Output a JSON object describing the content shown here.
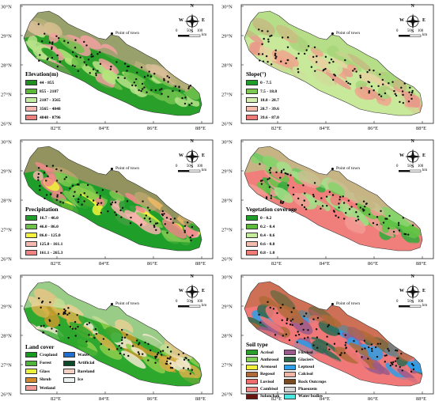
{
  "lat_labels": [
    "30°N",
    "29°N",
    "28°N",
    "27°N",
    "26°N"
  ],
  "lon_labels": [
    "82°E",
    "84°E",
    "86°E",
    "88°E"
  ],
  "compass": {
    "n": "N",
    "s": "S",
    "w": "W",
    "e": "E",
    "icon": "compass-rose-icon"
  },
  "town_label": "Point of town",
  "scale": {
    "ticks": [
      "0",
      "50",
      "100"
    ],
    "unit": "km"
  },
  "panels": [
    {
      "id": "elevation",
      "legend_title": "Elevation(m)",
      "map_colors": [
        "#2aa02a",
        "#71c24c",
        "#b9e28a",
        "#b6e47a",
        "#f2a0a0"
      ],
      "legend": [
        {
          "label": "44 - 855",
          "color": "#1f8f1f"
        },
        {
          "label": "855 - 2107",
          "color": "#5cb935"
        },
        {
          "label": "2107 - 3565",
          "color": "#c5eea2"
        },
        {
          "label": "3565 - 4848",
          "color": "#f6b8b0"
        },
        {
          "label": "4848 - 8796",
          "color": "#ee7f7f"
        }
      ]
    },
    {
      "id": "slope",
      "legend_title": "Slope(°)",
      "map_colors": [
        "#c8e89a",
        "#e6d2a0",
        "#f0a58c",
        "#e89a8a",
        "#a7d67a"
      ],
      "legend": [
        {
          "label": "0 - 7.5",
          "color": "#1f9e2a"
        },
        {
          "label": "7.5 - 18.8",
          "color": "#7cc850"
        },
        {
          "label": "18.8 - 28.7",
          "color": "#d8efb4"
        },
        {
          "label": "28.7 - 39.6",
          "color": "#f6bcae"
        },
        {
          "label": "39.6 - 87.0",
          "color": "#ee7a78"
        }
      ]
    },
    {
      "id": "precipitation",
      "legend_title": "Precipitation",
      "map_colors": [
        "#1f9e2a",
        "#7cc850",
        "#f2f23a",
        "#f6b3ad",
        "#f08a88"
      ],
      "legend": [
        {
          "label": "16.7 - 46.0",
          "color": "#1f9e2a"
        },
        {
          "label": "46.0 - 86.0",
          "color": "#6dc24a"
        },
        {
          "label": "86.0 - 125.0",
          "color": "#f5f23d"
        },
        {
          "label": "125.0 - 161.1",
          "color": "#f6b8b0"
        },
        {
          "label": "161.1 - 265.3",
          "color": "#f08282"
        }
      ]
    },
    {
      "id": "vegetation",
      "legend_title": "Vegetation coverage",
      "map_colors": [
        "#f07f7c",
        "#f39a94",
        "#63c447",
        "#2eae3a",
        "#a4e08a"
      ],
      "legend": [
        {
          "label": "0 - 0.2",
          "color": "#1f9e2a"
        },
        {
          "label": "0.2 - 0.4",
          "color": "#5cbc3a"
        },
        {
          "label": "0.4 - 0.6",
          "color": "#c6ed9f"
        },
        {
          "label": "0.6 - 0.8",
          "color": "#f6bcae"
        },
        {
          "label": "0.8 - 1.0",
          "color": "#f07c78"
        }
      ]
    },
    {
      "id": "landcover",
      "legend_title": "Land cover",
      "map_colors": [
        "#2ea82e",
        "#8ecf4c",
        "#d8b24a",
        "#c79a2c",
        "#f2ead0"
      ],
      "legend": [
        {
          "label": "Cropland",
          "color": "#149c1c"
        },
        {
          "label": "Water",
          "color": "#1f6fd0"
        },
        {
          "label": "Forest",
          "color": "#4fb53a"
        },
        {
          "label": "Artificial",
          "color": "#0d4a2a"
        },
        {
          "label": "Glass",
          "color": "#ecf23a"
        },
        {
          "label": "Bareland",
          "color": "#f4d0c2"
        },
        {
          "label": "Shrub",
          "color": "#d48a2a"
        },
        {
          "label": "Ice",
          "color": "#eef2f2"
        },
        {
          "label": "Wetland",
          "color": "#f39a96"
        }
      ]
    },
    {
      "id": "soil",
      "legend_title": "Soil type",
      "map_colors": [
        "#f07878",
        "#2e9ee8",
        "#2e6a4e",
        "#9a5a8a",
        "#b06a38"
      ],
      "legend": [
        {
          "label": "Acrisol",
          "color": "#2a9e2a"
        },
        {
          "label": "Fluvisol",
          "color": "#9a5a8c"
        },
        {
          "label": "Anthrosol",
          "color": "#7fcf5a"
        },
        {
          "label": "Glaciers",
          "color": "#2e6a4a"
        },
        {
          "label": "Arenosol",
          "color": "#f2f03a"
        },
        {
          "label": "Leptosol",
          "color": "#2f9ee8"
        },
        {
          "label": "Regosol",
          "color": "#b06a38"
        },
        {
          "label": "Calcisol",
          "color": "#f2b6a8"
        },
        {
          "label": "Luvisol",
          "color": "#ee6e6e"
        },
        {
          "label": "Rock Outcrops",
          "color": "#7a4a20"
        },
        {
          "label": "Cambisol",
          "color": "#f08a86"
        },
        {
          "label": "Phaeozem",
          "color": "#d6d6d6"
        },
        {
          "label": "Solonchak",
          "color": "#6a1410"
        },
        {
          "label": "Water bodies",
          "color": "#4ae8e0"
        }
      ]
    }
  ]
}
